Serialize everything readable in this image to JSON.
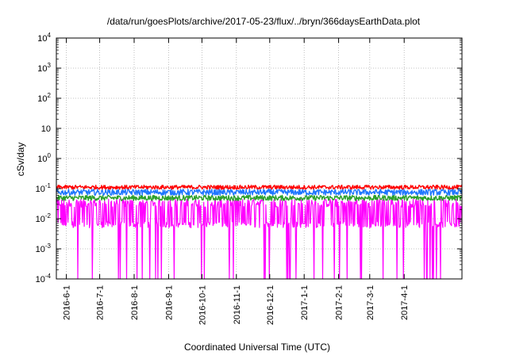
{
  "chart_data": {
    "type": "line",
    "title": "/data/run/goesPlots/archive/2017-05-23/flux/../bryn/366daysEarthData.plot",
    "xlabel": "Coordinated Universal Time (UTC)",
    "ylabel": "cSv/day",
    "yscale": "log",
    "ylim": [
      0.0001,
      10000
    ],
    "xlim": [
      "2016-05-23",
      "2017-05-23"
    ],
    "grid": true,
    "y_ticks": [
      {
        "value": 0.0001,
        "base": "10",
        "exp": "-4"
      },
      {
        "value": 0.001,
        "base": "10",
        "exp": "-3"
      },
      {
        "value": 0.01,
        "base": "10",
        "exp": "-2"
      },
      {
        "value": 0.1,
        "base": "10",
        "exp": "-1"
      },
      {
        "value": 1,
        "base": "10",
        "exp": "0"
      },
      {
        "value": 10,
        "base": "10",
        "exp": ""
      },
      {
        "value": 100,
        "base": "10",
        "exp": "2"
      },
      {
        "value": 1000,
        "base": "10",
        "exp": "3"
      },
      {
        "value": 10000,
        "base": "10",
        "exp": "4"
      }
    ],
    "x_ticks": [
      {
        "date": "2016-06-01",
        "label": "2016-6-1"
      },
      {
        "date": "2016-07-01",
        "label": "2016-7-1"
      },
      {
        "date": "2016-08-01",
        "label": "2016-8-1"
      },
      {
        "date": "2016-09-01",
        "label": "2016-9-1"
      },
      {
        "date": "2016-10-01",
        "label": "2016-10-1"
      },
      {
        "date": "2016-11-01",
        "label": "2016-11-1"
      },
      {
        "date": "2016-12-01",
        "label": "2016-12-1"
      },
      {
        "date": "2017-01-01",
        "label": "2017-1-1"
      },
      {
        "date": "2017-02-01",
        "label": "2017-2-1"
      },
      {
        "date": "2017-03-01",
        "label": "2017-3-1"
      },
      {
        "date": "2017-04-01",
        "label": "2017-4-1"
      }
    ],
    "series": [
      {
        "color": "#ff0000",
        "typical": 0.11,
        "range": [
          0.095,
          0.13
        ]
      },
      {
        "color": "#1f77ff",
        "typical": 0.075,
        "range": [
          0.06,
          0.095
        ]
      },
      {
        "color": "#2ca02c",
        "typical": 0.05,
        "range": [
          0.04,
          0.06
        ]
      },
      {
        "color": "#ff00ff",
        "typical": 0.03,
        "range": [
          0.0001,
          0.06
        ]
      }
    ]
  }
}
